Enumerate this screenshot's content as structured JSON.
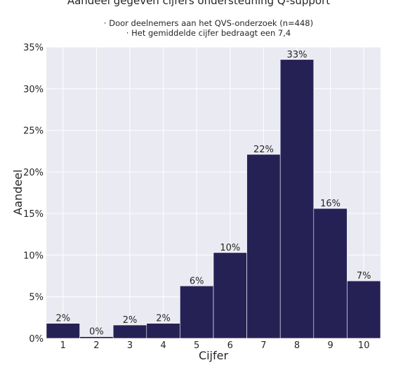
{
  "chart_data": {
    "type": "bar",
    "title": "Aandeel gegeven cijfers ondersteuning Q-support",
    "subtitle_lines": [
      "· Door deelnemers aan het QVS-onderzoek (n=448)",
      "· Het gemiddelde cijfer bedraagt een 7,4"
    ],
    "xlabel": "Cijfer",
    "ylabel": "Aandeel",
    "categories": [
      "1",
      "2",
      "3",
      "4",
      "5",
      "6",
      "7",
      "8",
      "9",
      "10"
    ],
    "values": [
      1.8,
      0.2,
      1.6,
      1.8,
      6.3,
      10.3,
      22.1,
      33.5,
      15.6,
      6.9
    ],
    "value_labels": [
      "2%",
      "0%",
      "2%",
      "2%",
      "6%",
      "10%",
      "22%",
      "33%",
      "16%",
      "7%"
    ],
    "ylim": [
      0,
      35
    ],
    "yticks": [
      0,
      5,
      10,
      15,
      20,
      25,
      30,
      35
    ],
    "ytick_labels": [
      "0%",
      "5%",
      "10%",
      "15%",
      "20%",
      "25%",
      "30%",
      "35%"
    ],
    "grid": true,
    "colors": {
      "bar": "#262155",
      "plot_background": "#eaeaf2",
      "grid": "#ffffff"
    }
  }
}
